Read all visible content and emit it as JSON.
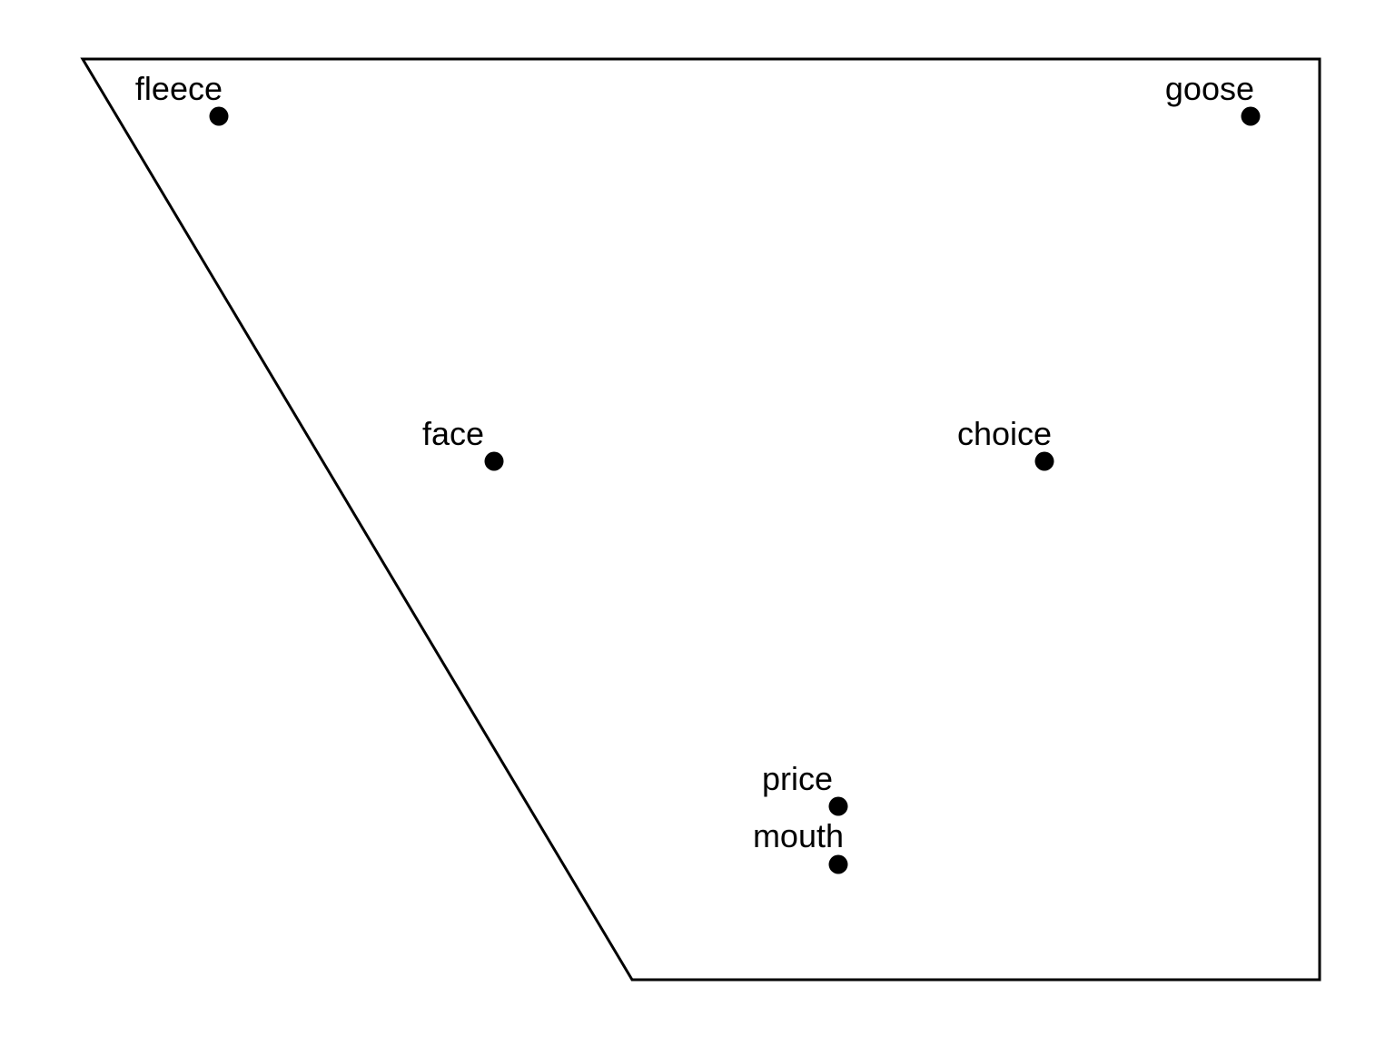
{
  "diagram": {
    "colors": {
      "background": "#ffffff",
      "stroke": "#000000",
      "point": "#000000"
    },
    "points": [
      {
        "label": "fleece"
      },
      {
        "label": "goose"
      },
      {
        "label": "face"
      },
      {
        "label": "choice"
      },
      {
        "label": "price"
      },
      {
        "label": "mouth"
      }
    ]
  }
}
